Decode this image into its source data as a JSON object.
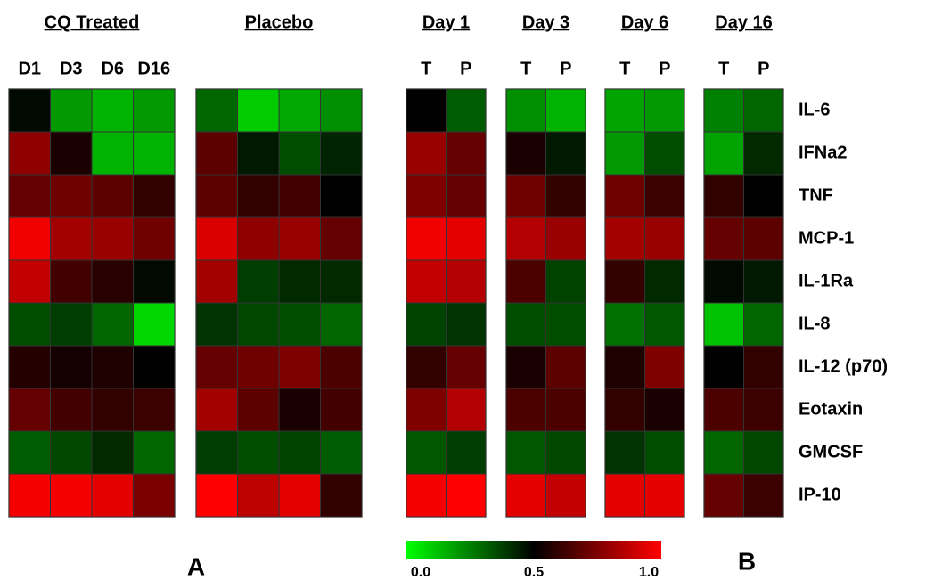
{
  "chart_data": {
    "type": "heatmap",
    "rows": [
      "IL-6",
      "IFNa2",
      "TNF",
      "MCP-1",
      "IL-1Ra",
      "IL-8",
      "IL-12 (p70)",
      "Eotaxin",
      "GMCSF",
      "IP-10"
    ],
    "panels": [
      {
        "title": "CQ Treated",
        "columns": [
          "D1",
          "D3",
          "D6",
          "D16"
        ],
        "values": [
          [
            0.48,
            0.2,
            0.15,
            0.2
          ],
          [
            0.78,
            0.55,
            0.15,
            0.15
          ],
          [
            0.7,
            0.72,
            0.68,
            0.6
          ],
          [
            0.97,
            0.82,
            0.8,
            0.72
          ],
          [
            0.88,
            0.63,
            0.58,
            0.48
          ],
          [
            0.35,
            0.38,
            0.3,
            0.08
          ],
          [
            0.57,
            0.54,
            0.56,
            0.5
          ],
          [
            0.7,
            0.63,
            0.6,
            0.62
          ],
          [
            0.32,
            0.36,
            0.42,
            0.3
          ],
          [
            0.98,
            0.98,
            0.95,
            0.74
          ]
        ]
      },
      {
        "title": "Placebo",
        "values": [
          [
            0.3,
            0.1,
            0.17,
            0.22
          ],
          [
            0.68,
            0.45,
            0.35,
            0.43
          ],
          [
            0.68,
            0.6,
            0.63,
            0.5
          ],
          [
            0.93,
            0.78,
            0.8,
            0.7
          ],
          [
            0.82,
            0.38,
            0.42,
            0.42
          ],
          [
            0.4,
            0.36,
            0.35,
            0.3
          ],
          [
            0.7,
            0.72,
            0.75,
            0.65
          ],
          [
            0.82,
            0.68,
            0.55,
            0.63
          ],
          [
            0.38,
            0.35,
            0.37,
            0.32
          ],
          [
            1.0,
            0.87,
            0.95,
            0.6
          ]
        ]
      },
      {
        "title": "Day 1",
        "columns": [
          "T",
          "P"
        ],
        "values": [
          [
            0.5,
            0.32
          ],
          [
            0.8,
            0.7
          ],
          [
            0.75,
            0.7
          ],
          [
            0.97,
            0.95
          ],
          [
            0.88,
            0.85
          ],
          [
            0.37,
            0.4
          ],
          [
            0.6,
            0.7
          ],
          [
            0.75,
            0.85
          ],
          [
            0.33,
            0.38
          ],
          [
            0.98,
            1.0
          ]
        ]
      },
      {
        "title": "Day 3",
        "columns": [
          "T",
          "P"
        ],
        "values": [
          [
            0.22,
            0.15
          ],
          [
            0.55,
            0.45
          ],
          [
            0.72,
            0.6
          ],
          [
            0.85,
            0.8
          ],
          [
            0.65,
            0.37
          ],
          [
            0.35,
            0.35
          ],
          [
            0.55,
            0.68
          ],
          [
            0.65,
            0.65
          ],
          [
            0.33,
            0.36
          ],
          [
            0.95,
            0.88
          ]
        ]
      },
      {
        "title": "Day 6",
        "columns": [
          "T",
          "P"
        ],
        "values": [
          [
            0.18,
            0.2
          ],
          [
            0.2,
            0.35
          ],
          [
            0.72,
            0.62
          ],
          [
            0.82,
            0.8
          ],
          [
            0.6,
            0.42
          ],
          [
            0.28,
            0.33
          ],
          [
            0.56,
            0.75
          ],
          [
            0.6,
            0.55
          ],
          [
            0.4,
            0.35
          ],
          [
            0.95,
            0.95
          ]
        ]
      },
      {
        "title": "Day 16",
        "columns": [
          "T",
          "P"
        ],
        "values": [
          [
            0.25,
            0.3
          ],
          [
            0.18,
            0.42
          ],
          [
            0.6,
            0.5
          ],
          [
            0.7,
            0.68
          ],
          [
            0.48,
            0.45
          ],
          [
            0.12,
            0.3
          ],
          [
            0.5,
            0.6
          ],
          [
            0.65,
            0.62
          ],
          [
            0.3,
            0.36
          ],
          [
            0.7,
            0.62
          ]
        ]
      }
    ],
    "clim": [
      0,
      1
    ],
    "cticks": [
      {
        "value": 0,
        "label": "0.0"
      },
      0.5,
      {
        "value": 1,
        "label": "1.0"
      }
    ],
    "panel_labels": [
      "A",
      "B"
    ]
  }
}
